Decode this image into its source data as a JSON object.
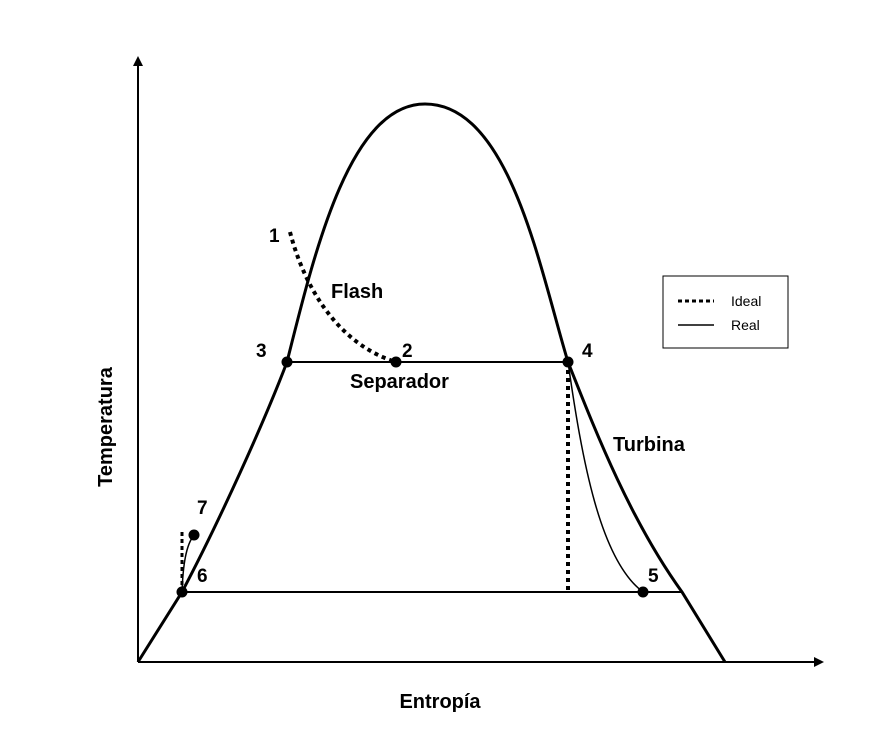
{
  "axes": {
    "ylabel": "Temperatura",
    "xlabel": "Entropía"
  },
  "points": {
    "p1": "1",
    "p2": "2",
    "p3": "3",
    "p4": "4",
    "p5": "5",
    "p6": "6",
    "p7": "7"
  },
  "regions": {
    "flash": "Flash",
    "separador": "Separador",
    "turbina": "Turbina"
  },
  "legend": {
    "ideal": "Ideal",
    "real": "Real"
  },
  "colors": {
    "line": "#000000",
    "background": "#ffffff"
  }
}
